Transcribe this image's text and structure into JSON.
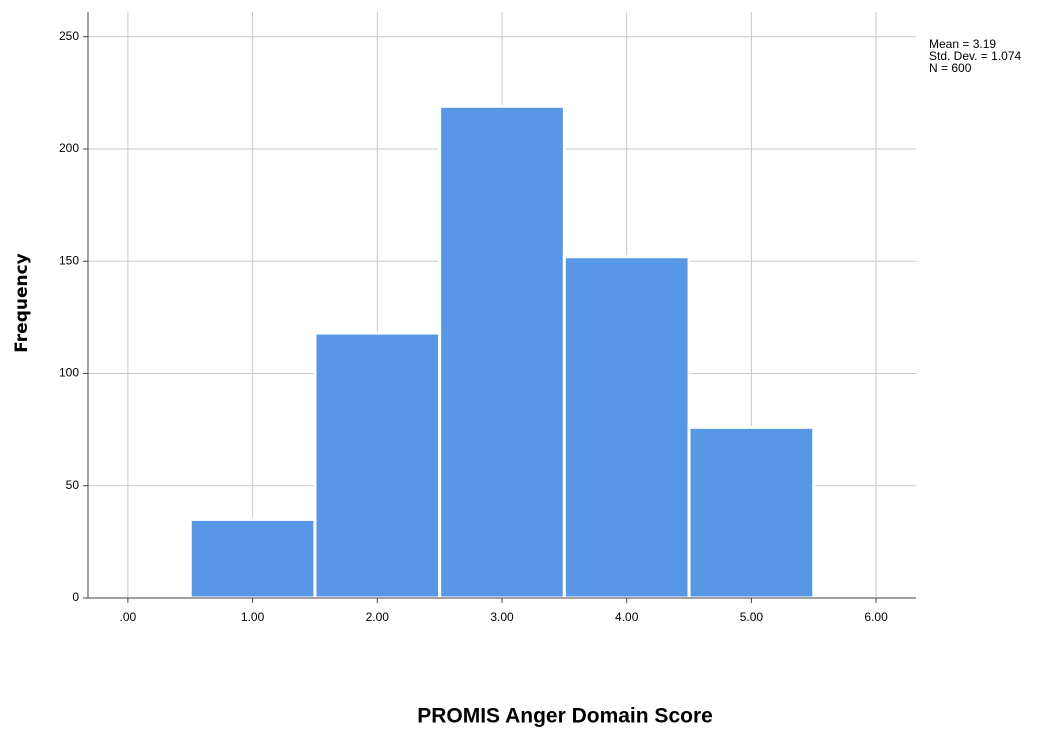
{
  "chart_data": {
    "type": "histogram",
    "xlabel": "PROMIS Anger Domain Score",
    "ylabel": "Frequency",
    "annotations": [
      "Mean = 3.19",
      "Std. Dev. = 1.074",
      "N = 600"
    ],
    "bins": [
      0.5,
      1.5,
      2.5,
      3.5,
      4.5,
      5.5
    ],
    "values": [
      35,
      118,
      219,
      152,
      76
    ],
    "color": "#5897e5",
    "xlim": [
      -0.32,
      6.32
    ],
    "xticks": [
      {
        "value": 0,
        "label": ".00"
      },
      {
        "value": 1,
        "label": "1.00"
      },
      {
        "value": 2,
        "label": "2.00"
      },
      {
        "value": 3,
        "label": "3.00"
      },
      {
        "value": 4,
        "label": "4.00"
      },
      {
        "value": 5,
        "label": "5.00"
      },
      {
        "value": 6,
        "label": "6.00"
      }
    ],
    "ylim": [
      0,
      261
    ],
    "yticks": [
      0,
      50,
      100,
      150,
      200,
      250
    ],
    "grid": true
  }
}
